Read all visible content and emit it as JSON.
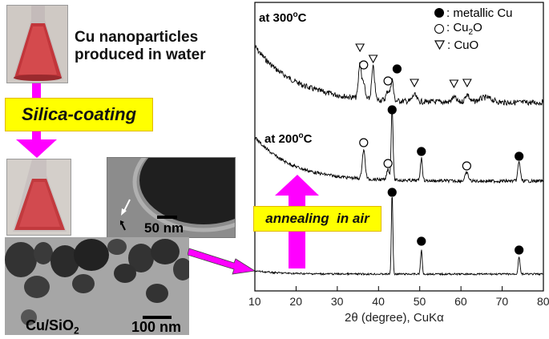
{
  "left": {
    "flask_caption_line1": "Cu nanoparticles",
    "flask_caption_line2": "produced in water",
    "coating_label": "Silica-coating",
    "tem_inset_scale": "50 nm",
    "tem_main_scale": "100 nm",
    "composite_label_base": "Cu/SiO",
    "composite_label_sub": "2"
  },
  "annealing_label": "annealing  in air",
  "colors": {
    "yellow": "#ffff00",
    "magenta": "#ff00ff",
    "flask_liquid": "#c63a3f"
  },
  "chart_data": {
    "type": "line",
    "xlabel": "2θ (degree), CuKα",
    "xlim": [
      10,
      80
    ],
    "x_ticks": [
      10,
      20,
      30,
      40,
      50,
      60,
      70,
      80
    ],
    "series": [
      {
        "name": "at 300°C",
        "label_base": "at 300",
        "label_deg": "o",
        "label_unit": "C"
      },
      {
        "name": "at 200°C",
        "label_base": "at 200",
        "label_deg": "o",
        "label_unit": "C"
      },
      {
        "name": ""
      }
    ],
    "legend": [
      {
        "marker": "filled-circle",
        "label": ": metallic Cu"
      },
      {
        "marker": "open-circle",
        "label_base": ": Cu",
        "label_sub": "2",
        "label_tail": "O"
      },
      {
        "marker": "open-triangle",
        "label": ": CuO"
      }
    ],
    "peaks": {
      "metallic_cu": [
        43.3,
        50.4,
        74.1
      ],
      "cu2o": [
        36.4,
        42.3,
        61.4
      ],
      "cuo": [
        35.5,
        38.7,
        48.7,
        58.3,
        61.5
      ]
    }
  }
}
